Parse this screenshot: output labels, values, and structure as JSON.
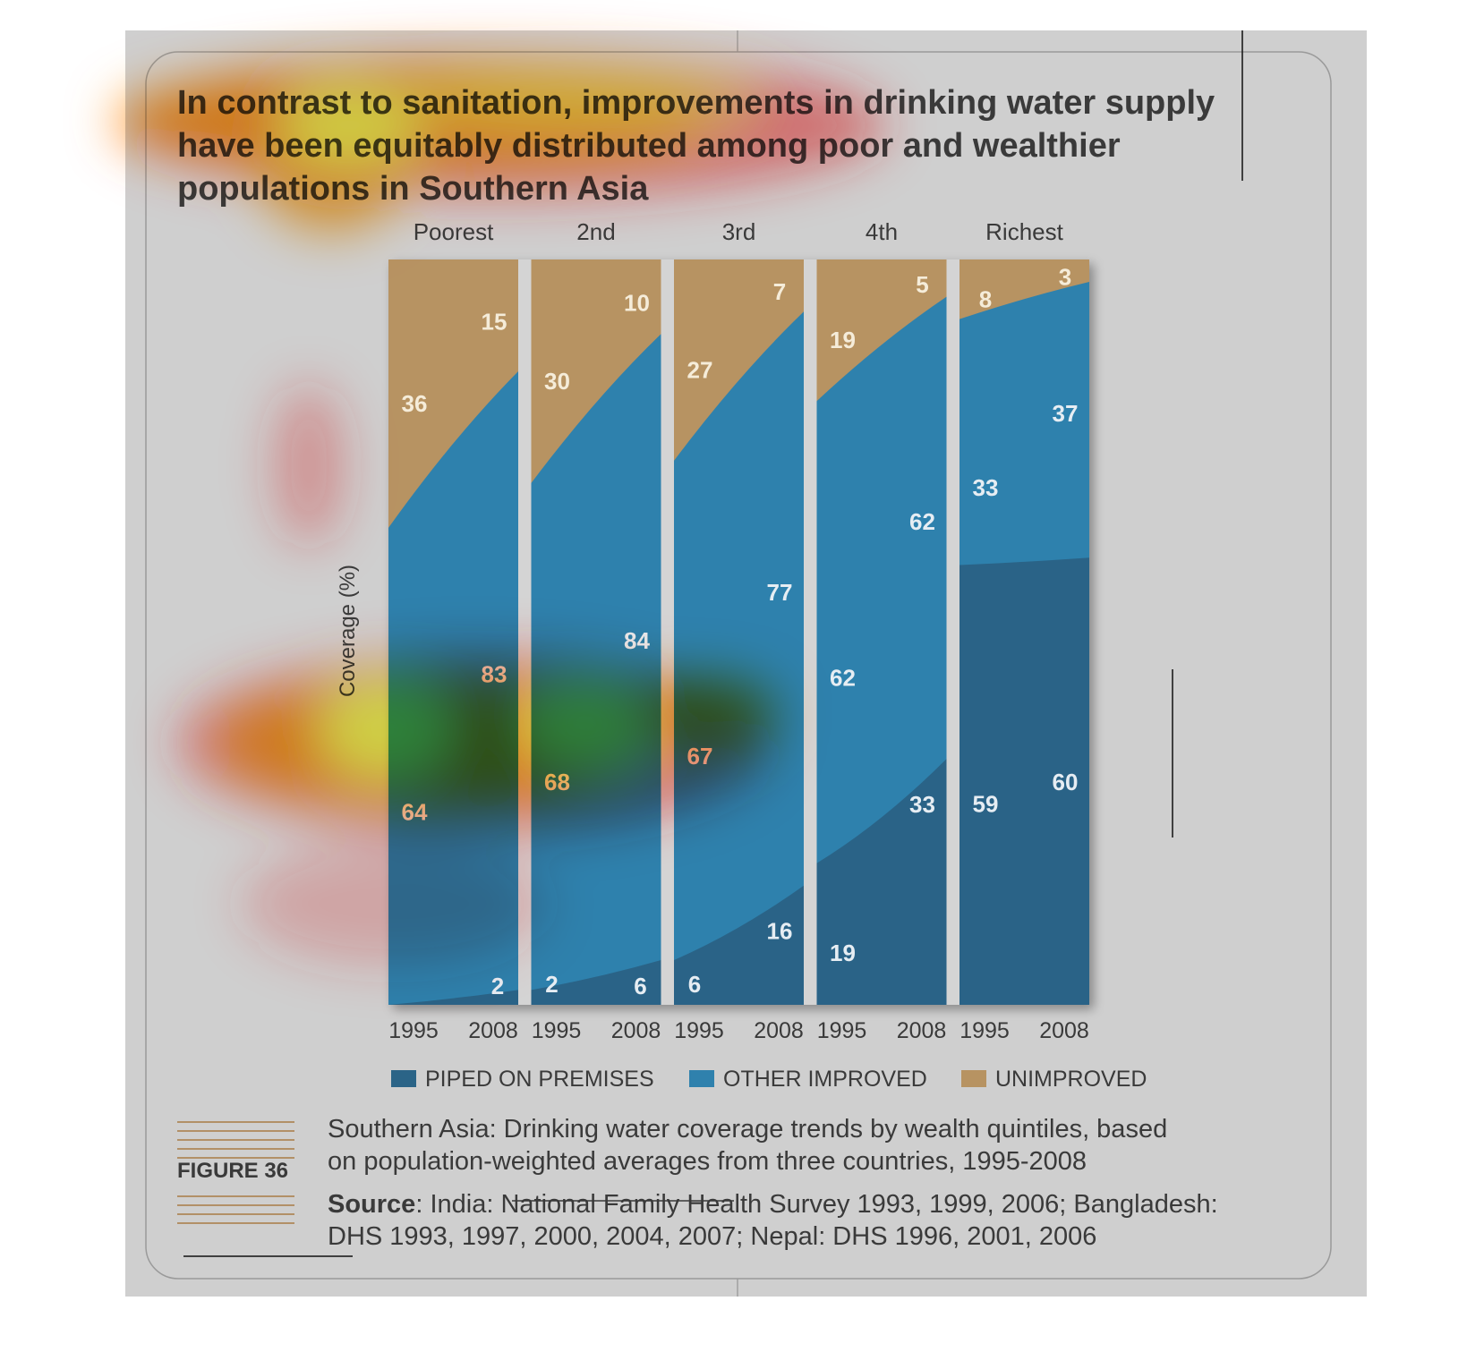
{
  "title_lines": [
    "In contrast to sanitation, improvements in drinking water supply",
    "have been equitably distributed among poor and wealthier",
    "populations in Southern Asia"
  ],
  "figure_label": "FIGURE 36",
  "caption_lines": [
    "Southern Asia: Drinking water coverage trends by wealth quintiles, based",
    "on population-weighted averages from three countries, 1995-2008"
  ],
  "source_label": "Source",
  "source_lines": [
    ": India: National Family Health Survey 1993, 1999, 2006; Bangladesh:",
    "DHS 1993, 1997, 2000, 2004, 2007; Nepal: DHS 1996, 2001, 2006"
  ],
  "colors": {
    "piped": "#2b6487",
    "other": "#2f81ad",
    "unimproved": "#b79362",
    "panel": "#cfcfcf",
    "border": "#9a9a9a",
    "text": "#3a3a3a",
    "label_light": "#e6edf3",
    "label_tan": "#f5ecd9",
    "rule": "#a97b45",
    "heat_hot": "#ffff55",
    "heat_mid": "#ff9a00",
    "heat_edge": "#ff2a2a"
  },
  "chart_data": {
    "type": "area",
    "ylabel": "Coverage (%)",
    "ylim": [
      0,
      100
    ],
    "facets": [
      "Poorest",
      "2nd",
      "3rd",
      "4th",
      "Richest"
    ],
    "x": [
      "1995",
      "2008"
    ],
    "series": [
      {
        "name": "PIPED ON PREMISES",
        "key": "piped",
        "values": [
          [
            0,
            2
          ],
          [
            2,
            6
          ],
          [
            6,
            16
          ],
          [
            19,
            33
          ],
          [
            59,
            60
          ]
        ]
      },
      {
        "name": "OTHER IMPROVED",
        "key": "other",
        "values": [
          [
            64,
            83
          ],
          [
            68,
            84
          ],
          [
            67,
            77
          ],
          [
            62,
            62
          ],
          [
            33,
            37
          ]
        ]
      },
      {
        "name": "UNIMPROVED",
        "key": "unimproved",
        "values": [
          [
            36,
            15
          ],
          [
            30,
            10
          ],
          [
            27,
            7
          ],
          [
            19,
            5
          ],
          [
            8,
            3
          ]
        ]
      }
    ],
    "data_labels": {
      "piped": [
        [
          "",
          "2"
        ],
        [
          "2",
          "6"
        ],
        [
          "6",
          "16"
        ],
        [
          "19",
          "33"
        ],
        [
          "59",
          "60"
        ]
      ],
      "other": [
        [
          "64",
          "83"
        ],
        [
          "68",
          "84"
        ],
        [
          "67",
          "77"
        ],
        [
          "62",
          "62"
        ],
        [
          "33",
          "37"
        ]
      ],
      "unimproved": [
        [
          "36",
          "15"
        ],
        [
          "30",
          "10"
        ],
        [
          "27",
          "7"
        ],
        [
          "19",
          "5"
        ],
        [
          "8",
          "3"
        ]
      ]
    },
    "legend": [
      "PIPED ON PREMISES",
      "OTHER IMPROVED",
      "UNIMPROVED"
    ],
    "legend_position": "bottom",
    "grid": false,
    "overlay": "attention heatmap"
  }
}
